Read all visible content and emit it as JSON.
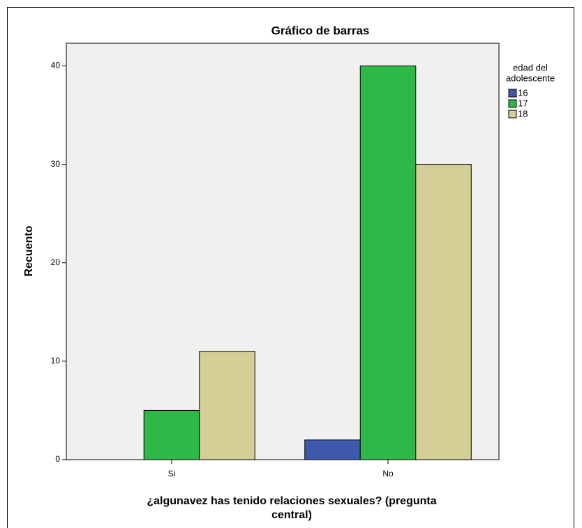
{
  "chart_data": {
    "type": "bar",
    "title": "Gráfico de barras",
    "x_label": [
      "¿algunavez has tenido relaciones sexuales? (pregunta",
      "central)"
    ],
    "y_label": "Recuento",
    "legend_title": [
      "edad del",
      "adolescente"
    ],
    "categories": [
      "Si",
      "No"
    ],
    "series": [
      {
        "name": "16",
        "color": "#3e58ac",
        "values": [
          0,
          2
        ]
      },
      {
        "name": "17",
        "color": "#2eb848",
        "values": [
          5,
          40
        ]
      },
      {
        "name": "18",
        "color": "#d4ce97",
        "values": [
          11,
          30
        ]
      }
    ],
    "ylim": [
      0,
      42.3
    ],
    "yticks": [
      0,
      10,
      20,
      30,
      40
    ],
    "grid": false,
    "legend": "right"
  }
}
